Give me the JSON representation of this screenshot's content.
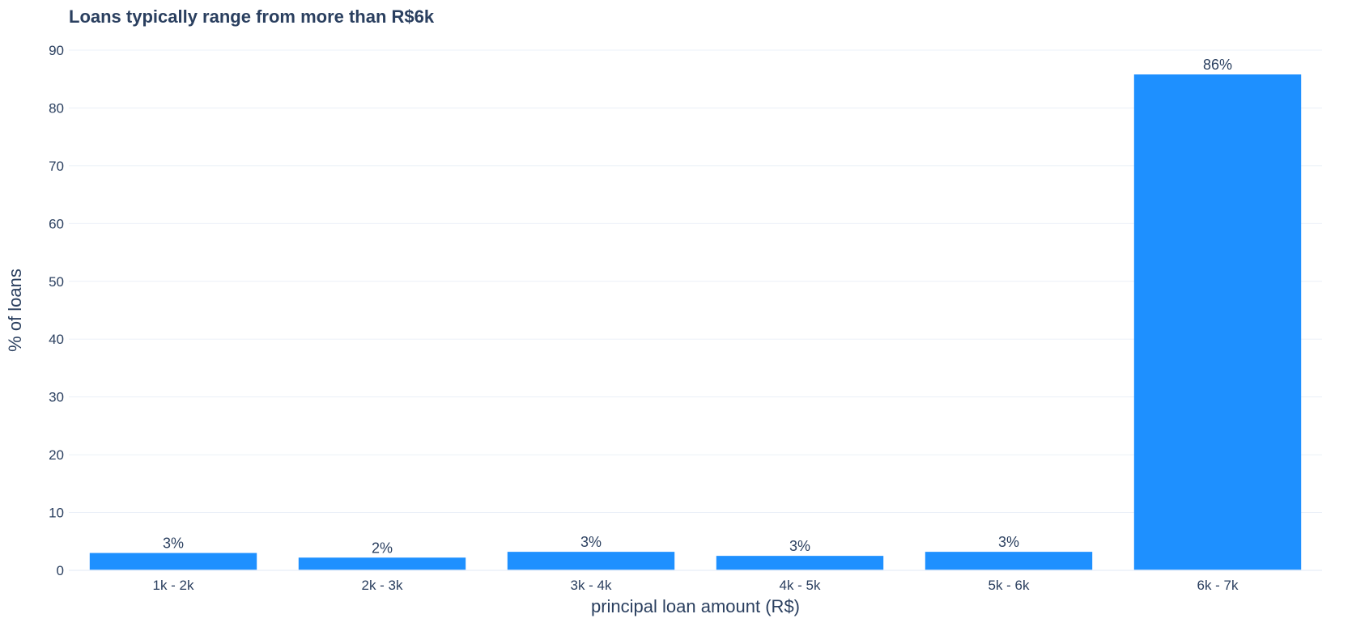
{
  "chart_data": {
    "type": "bar",
    "title": "Loans typically range from more than R$6k",
    "xlabel": "principal loan amount (R$)",
    "ylabel": "% of loans",
    "categories": [
      "1k - 2k",
      "2k - 3k",
      "3k - 4k",
      "4k - 5k",
      "5k - 6k",
      "6k - 7k"
    ],
    "values": [
      3.0,
      2.2,
      3.2,
      2.5,
      3.2,
      85.8
    ],
    "data_labels": [
      "3%",
      "2%",
      "3%",
      "3%",
      "3%",
      "86%"
    ],
    "ylim": [
      0,
      90
    ],
    "yticks": [
      "0",
      "10",
      "20",
      "30",
      "40",
      "50",
      "60",
      "70",
      "80",
      "90"
    ],
    "grid": true,
    "legend": "none",
    "bar_color": "#1e90ff",
    "grid_color": "#ebf0f8",
    "text_color": "#2a3f5f"
  }
}
